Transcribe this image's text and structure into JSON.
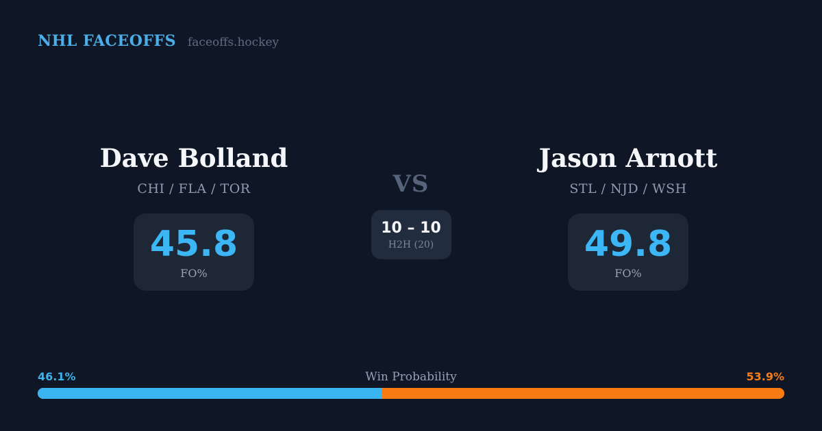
{
  "header": {
    "brand": "NHL FACEOFFS",
    "site": "faceoffs.hockey"
  },
  "players": {
    "left": {
      "name": "Dave Bolland",
      "teams": "CHI / FLA / TOR",
      "fo_pct": "45.8",
      "fo_label": "FO%"
    },
    "right": {
      "name": "Jason Arnott",
      "teams": "STL / NJD / WSH",
      "fo_pct": "49.8",
      "fo_label": "FO%"
    }
  },
  "versus": {
    "label": "VS",
    "h2h_score": "10 – 10",
    "h2h_label": "H2H (20)"
  },
  "win_probability": {
    "title": "Win Probability",
    "left_pct_label": "46.1%",
    "right_pct_label": "53.9%",
    "left_value": 46.1,
    "right_value": 53.9
  },
  "colors": {
    "background": "#0f1726",
    "card": "#1d2736",
    "h2h_card": "#212c3d",
    "accent_blue": "#3db6f5",
    "accent_orange": "#f87b12",
    "brand_blue": "#4caee6",
    "muted_text": "#8e9bb0",
    "vs_text": "#57637b",
    "white_text": "#f4f6f9"
  }
}
